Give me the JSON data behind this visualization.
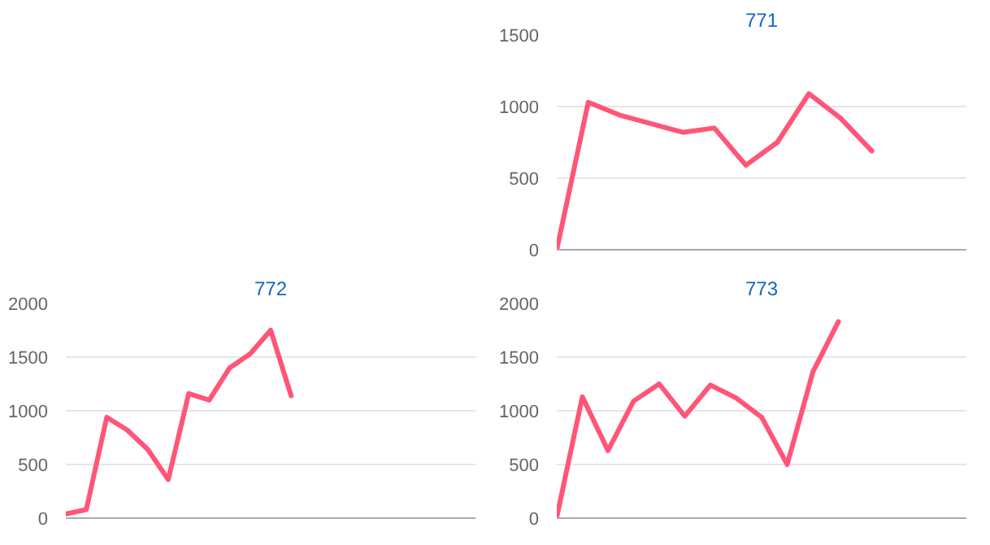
{
  "chart_data": [
    {
      "type": "line",
      "title": "771",
      "categories": [
        null,
        null,
        null,
        null,
        null,
        null,
        null,
        null,
        null,
        null,
        null,
        null,
        null,
        null
      ],
      "series": [
        {
          "color": "#ff5577",
          "values": [
            0,
            1030,
            940,
            880,
            820,
            850,
            590,
            750,
            1090,
            920,
            690,
            null,
            null,
            null
          ]
        }
      ],
      "ylim": [
        0,
        1500
      ],
      "yticks": [
        0,
        500,
        1000,
        1500
      ],
      "grid": "y",
      "tick_labels": "y"
    },
    {
      "type": "line",
      "title": "772",
      "categories": [
        null,
        null,
        null,
        null,
        null,
        null,
        null,
        null,
        null,
        null,
        null,
        null,
        null,
        null,
        null,
        null,
        null,
        null,
        null,
        null,
        null
      ],
      "series": [
        {
          "color": "#ff5577",
          "values": [
            40,
            80,
            940,
            820,
            640,
            360,
            1160,
            1100,
            1400,
            1530,
            1750,
            1140,
            null,
            null,
            null,
            null,
            null,
            null,
            null,
            null,
            null
          ]
        }
      ],
      "ylim": [
        0,
        2000
      ],
      "yticks": [
        0,
        500,
        1000,
        1500,
        2000
      ],
      "grid": "y",
      "tick_labels": "y"
    },
    {
      "type": "line",
      "title": "773",
      "categories": [
        null,
        null,
        null,
        null,
        null,
        null,
        null,
        null,
        null,
        null,
        null,
        null,
        null,
        null,
        null,
        null,
        null
      ],
      "series": [
        {
          "color": "#ff5577",
          "values": [
            10,
            1130,
            630,
            1090,
            1250,
            950,
            1240,
            1120,
            940,
            500,
            1360,
            1830,
            null,
            null,
            null,
            null,
            null
          ]
        }
      ],
      "ylim": [
        0,
        2000
      ],
      "yticks": [
        0,
        500,
        1000,
        1500,
        2000
      ],
      "grid": "y",
      "tick_labels": "y"
    }
  ]
}
